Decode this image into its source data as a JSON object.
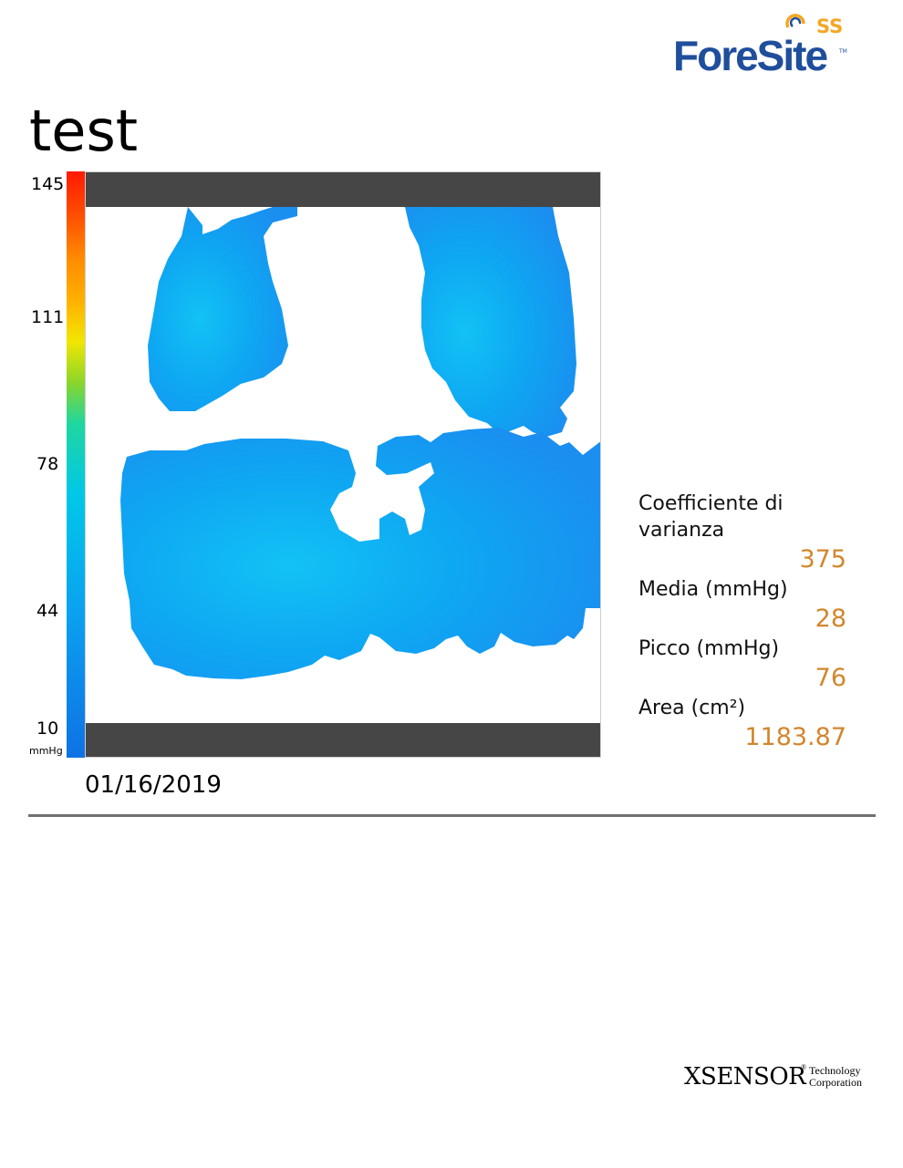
{
  "header": {
    "logo_text": "ForeSite",
    "logo_suffix": "SS",
    "logo_tm": "TM"
  },
  "report": {
    "title": "test",
    "date": "01/16/2019"
  },
  "scale": {
    "ticks": [
      "145",
      "111",
      "78",
      "44",
      "10"
    ],
    "unit": "mmHg",
    "colors": [
      "#ff1a00",
      "#ff6a00",
      "#ffa800",
      "#f2e600",
      "#8ad62a",
      "#1fd6a0",
      "#00bfe6",
      "#0096f0",
      "#0f6fe0"
    ]
  },
  "pressure_map": {
    "fill_colors": [
      "#1a8ff0",
      "#0ea7f2",
      "#12c2f5"
    ],
    "bar_color": "#464646"
  },
  "stats": {
    "cv_label": "Coefficiente di varianza",
    "cv_value": "375",
    "mean_label": "Media (mmHg)",
    "mean_value": "28",
    "peak_label": "Picco (mmHg)",
    "peak_value": "76",
    "area_label": "Area (cm²)",
    "area_value": "1183.87",
    "value_color": "#d2862d"
  },
  "footer": {
    "logo_main": "XSENSOR",
    "logo_reg": "®",
    "logo_line1": "Technology",
    "logo_line2": "Corporation"
  }
}
